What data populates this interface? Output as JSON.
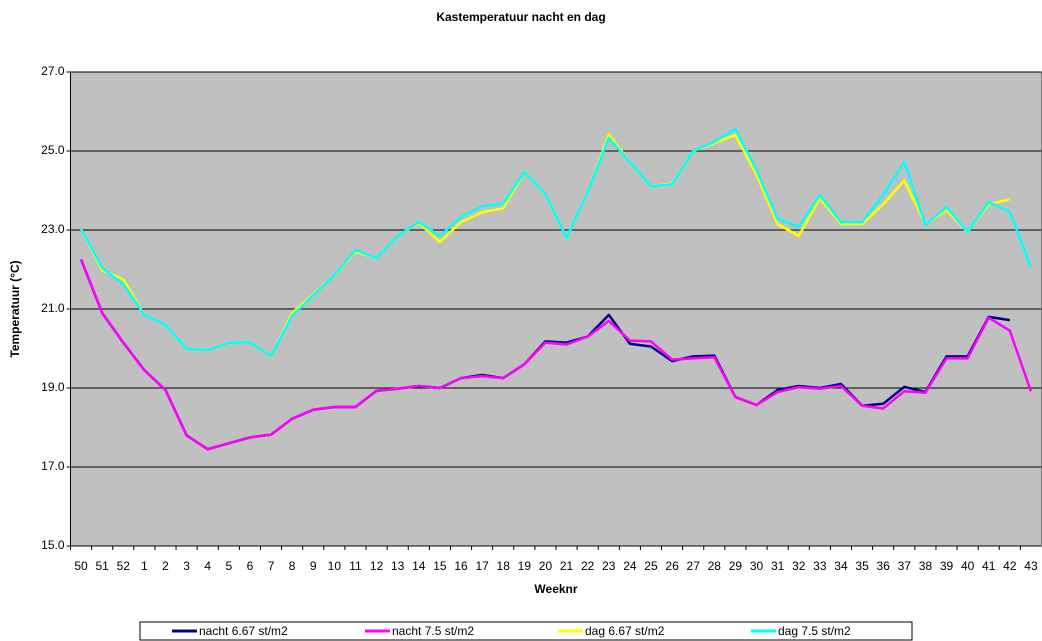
{
  "chart_data": {
    "type": "line",
    "title": "Kastemperatuur nacht en dag",
    "x_label": "Weeknr",
    "y_label": "Temperatuur (°C)",
    "categories": [
      "50",
      "51",
      "52",
      "1",
      "2",
      "3",
      "4",
      "5",
      "6",
      "7",
      "8",
      "9",
      "10",
      "11",
      "12",
      "13",
      "14",
      "15",
      "16",
      "17",
      "18",
      "19",
      "20",
      "21",
      "22",
      "23",
      "24",
      "25",
      "26",
      "27",
      "28",
      "29",
      "30",
      "31",
      "32",
      "33",
      "34",
      "35",
      "36",
      "37",
      "38",
      "39",
      "40",
      "41",
      "42",
      "43"
    ],
    "ylim": [
      15,
      27
    ],
    "yticks": [
      {
        "value": 15,
        "label": "15.0"
      },
      {
        "value": 17,
        "label": "17.0"
      },
      {
        "value": 19,
        "label": "19.0"
      },
      {
        "value": 21,
        "label": "21.0"
      },
      {
        "value": 23,
        "label": "23.0"
      },
      {
        "value": 25,
        "label": "25.0"
      },
      {
        "value": 27,
        "label": "27.0"
      }
    ],
    "grid": true,
    "legend": "bottom",
    "series": [
      {
        "name": "nacht 6.67 st/m2",
        "color": "#000080",
        "values": [
          22.25,
          20.9,
          20.15,
          19.45,
          18.95,
          17.8,
          17.45,
          17.6,
          17.75,
          17.82,
          18.22,
          18.45,
          18.52,
          18.52,
          18.93,
          18.98,
          19.05,
          19.0,
          19.25,
          19.33,
          19.25,
          19.6,
          20.18,
          20.15,
          20.3,
          20.85,
          20.12,
          20.05,
          19.68,
          19.8,
          19.82,
          18.77,
          18.57,
          18.95,
          19.05,
          19.0,
          19.1,
          18.55,
          18.6,
          19.03,
          18.9,
          19.8,
          19.8,
          20.8,
          20.72,
          null
        ]
      },
      {
        "name": "nacht 7.5 st/m2",
        "color": "#ff00ff",
        "values": [
          22.25,
          20.9,
          20.15,
          19.45,
          18.95,
          17.8,
          17.45,
          17.6,
          17.75,
          17.82,
          18.22,
          18.45,
          18.52,
          18.52,
          18.93,
          18.98,
          19.05,
          19.0,
          19.25,
          19.3,
          19.25,
          19.6,
          20.15,
          20.1,
          20.3,
          20.7,
          20.2,
          20.18,
          19.72,
          19.75,
          19.78,
          18.77,
          18.57,
          18.9,
          19.02,
          18.98,
          19.05,
          18.55,
          18.48,
          18.92,
          18.88,
          19.75,
          19.75,
          20.78,
          20.45,
          18.92
        ]
      },
      {
        "name": "dag 6.67 st/m2",
        "color": "#ffff00",
        "values": [
          23.03,
          21.98,
          21.75,
          20.85,
          20.6,
          19.99,
          19.96,
          20.14,
          20.16,
          19.81,
          20.9,
          21.38,
          21.86,
          22.45,
          22.29,
          22.85,
          23.18,
          22.7,
          23.2,
          23.45,
          23.55,
          24.47,
          23.91,
          22.8,
          23.96,
          25.42,
          24.72,
          24.11,
          24.18,
          25.0,
          25.2,
          25.4,
          24.4,
          23.15,
          22.85,
          23.8,
          23.15,
          23.15,
          23.65,
          24.25,
          23.15,
          23.5,
          22.95,
          23.65,
          23.78,
          null
        ]
      },
      {
        "name": "dag 7.5 st/m2",
        "color": "#00ffff",
        "values": [
          23.03,
          22.04,
          21.63,
          20.85,
          20.6,
          19.99,
          19.96,
          20.14,
          20.16,
          19.81,
          20.82,
          21.35,
          21.86,
          22.49,
          22.29,
          22.85,
          23.2,
          22.85,
          23.33,
          23.6,
          23.66,
          24.47,
          23.91,
          22.8,
          23.96,
          25.33,
          24.72,
          24.11,
          24.16,
          25.0,
          25.23,
          25.56,
          24.52,
          23.28,
          23.08,
          23.89,
          23.2,
          23.2,
          23.89,
          24.72,
          23.13,
          23.58,
          22.95,
          23.71,
          23.46,
          22.06
        ]
      }
    ]
  }
}
